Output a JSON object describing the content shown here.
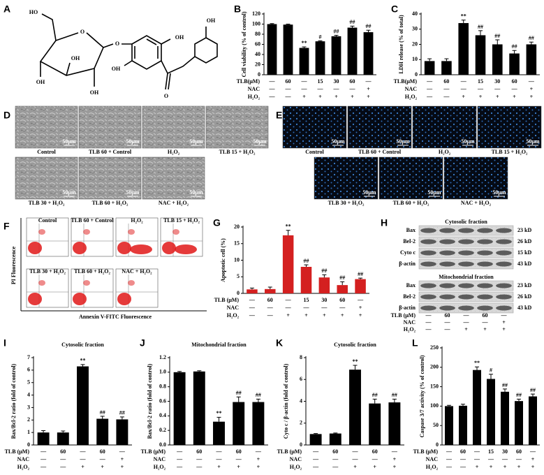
{
  "panel_letters": [
    "A",
    "B",
    "C",
    "D",
    "E",
    "F",
    "G",
    "H",
    "I",
    "J",
    "K",
    "L"
  ],
  "structure": {
    "labels": [
      "HO",
      "O",
      "O",
      "OH",
      "OH",
      "OH",
      "OH",
      "OH",
      "O",
      "OH"
    ]
  },
  "chart_data": [
    {
      "type": "bar",
      "ylabel": "Cell viability (% of control)",
      "color": "#000000",
      "values": [
        100,
        99,
        53,
        66,
        76,
        93,
        84
      ],
      "errors": [
        1,
        1,
        2,
        1,
        2,
        3,
        4
      ],
      "annotations": [
        null,
        null,
        "**",
        "#",
        "##",
        "##",
        "##"
      ],
      "ylim": [
        0,
        120
      ],
      "yticks": [
        0,
        20,
        40,
        60,
        80,
        100,
        120
      ],
      "treatments": [
        {
          "name": "TLB(μM)",
          "values": [
            "—",
            "60",
            "—",
            "15",
            "30",
            "60",
            "—"
          ]
        },
        {
          "name": "NAC",
          "values": [
            "—",
            "—",
            "—",
            "—",
            "—",
            "—",
            "+"
          ]
        },
        {
          "name": "H₂O₂",
          "values": [
            "—",
            "—",
            "+",
            "+",
            "+",
            "+",
            "+"
          ]
        }
      ]
    },
    {
      "type": "bar",
      "ylabel": "LDH release (% of total)",
      "color": "#000000",
      "values": [
        9,
        9,
        34,
        26,
        20,
        14,
        20
      ],
      "errors": [
        1.5,
        1.5,
        2,
        3,
        3,
        2,
        1.5
      ],
      "annotations": [
        null,
        null,
        "**",
        "##",
        "##",
        "##",
        "##"
      ],
      "ylim": [
        0,
        40
      ],
      "yticks": [
        0,
        10,
        20,
        30,
        40
      ],
      "treatments": [
        {
          "name": "TLB(μM)",
          "values": [
            "—",
            "60",
            "—",
            "15",
            "30",
            "60",
            "—"
          ]
        },
        {
          "name": "NAC",
          "values": [
            "—",
            "—",
            "—",
            "—",
            "—",
            "—",
            "+"
          ]
        },
        {
          "name": "H₂O₂",
          "values": [
            "—",
            "—",
            "+",
            "+",
            "+",
            "+",
            "+"
          ]
        }
      ]
    },
    {
      "type": "bar",
      "ylabel": "Apoptotic cell (%)",
      "color": "#d42020",
      "values": [
        1.2,
        1.3,
        17.5,
        8,
        4.8,
        2.5,
        4.3
      ],
      "errors": [
        0.4,
        0.6,
        1.5,
        0.6,
        0.8,
        1,
        0.3
      ],
      "annotations": [
        null,
        null,
        "**",
        "##",
        "##",
        "##",
        "##"
      ],
      "ylim": [
        0,
        20
      ],
      "yticks": [
        0,
        5,
        10,
        15,
        20
      ],
      "treatments": [
        {
          "name": "TLB (μM)",
          "values": [
            "—",
            "60",
            "—",
            "15",
            "30",
            "60",
            "—"
          ]
        },
        {
          "name": "NAC",
          "values": [
            "—",
            "—",
            "—",
            "—",
            "—",
            "—",
            "+"
          ]
        },
        {
          "name": "H₂O₂",
          "values": [
            "—",
            "—",
            "+",
            "+",
            "+",
            "+",
            "+"
          ]
        }
      ]
    },
    {
      "type": "bar",
      "title": "Cytosolic fraction",
      "ylabel": "Bax/Bcl-2 ratio (fold of control)",
      "color": "#000000",
      "values": [
        1,
        1,
        6.3,
        2.1,
        2.05
      ],
      "errors": [
        0.15,
        0.12,
        0.15,
        0.2,
        0.2
      ],
      "annotations": [
        null,
        null,
        "**",
        "##",
        "##"
      ],
      "ylim": [
        0,
        7
      ],
      "yticks": [
        0,
        1,
        2,
        3,
        4,
        5,
        6,
        7
      ],
      "treatments": [
        {
          "name": "TLB (μM)",
          "values": [
            "—",
            "60",
            "—",
            "60",
            "—"
          ]
        },
        {
          "name": "NAC",
          "values": [
            "—",
            "—",
            "—",
            "—",
            "+"
          ]
        },
        {
          "name": "H₂O₂",
          "values": [
            "—",
            "—",
            "+",
            "+",
            "+"
          ]
        }
      ]
    },
    {
      "type": "bar",
      "title": "Mitochondrial fraction",
      "ylabel": "Bax/Bcl-2 ratio (fold of control)",
      "color": "#000000",
      "values": [
        1,
        1.01,
        0.32,
        0.59,
        0.59
      ],
      "errors": [
        0.01,
        0.01,
        0.06,
        0.07,
        0.04
      ],
      "annotations": [
        null,
        null,
        "**",
        "##",
        "##"
      ],
      "ylim": [
        0,
        1.2
      ],
      "yticks": [
        {
          "value": 0,
          "label": "0.0"
        },
        0.2,
        0.4,
        0.6,
        0.8,
        {
          "value": 1,
          "label": "1.0"
        },
        1.2
      ],
      "treatments": [
        {
          "name": "TLB (μM)",
          "values": [
            "—",
            "60",
            "—",
            "60",
            "—"
          ]
        },
        {
          "name": "NAC",
          "values": [
            "—",
            "—",
            "—",
            "—",
            "+"
          ]
        },
        {
          "name": "H₂O₂",
          "values": [
            "—",
            "—",
            "+",
            "+",
            "+"
          ]
        }
      ]
    },
    {
      "type": "bar",
      "title": "Cytosolic fraction",
      "ylabel": "Cyto c / β-actin (fold of control)",
      "color": "#000000",
      "values": [
        1,
        1.05,
        6.9,
        3.8,
        3.9
      ],
      "errors": [
        0.05,
        0.05,
        0.4,
        0.4,
        0.3
      ],
      "annotations": [
        null,
        null,
        "**",
        "##",
        "##"
      ],
      "ylim": [
        0,
        8
      ],
      "yticks": [
        0,
        2,
        4,
        6,
        8
      ],
      "treatments": [
        {
          "name": "TLB (μM)",
          "values": [
            "—",
            "60",
            "—",
            "60",
            "—"
          ]
        },
        {
          "name": "NAC",
          "values": [
            "—",
            "—",
            "—",
            "—",
            "+"
          ]
        },
        {
          "name": "H₂O₂",
          "values": [
            "—",
            "—",
            "+",
            "+",
            "+"
          ]
        }
      ]
    },
    {
      "type": "bar",
      "ylabel": "Caspase 3/7 activity (% of control)",
      "color": "#000000",
      "values": [
        100,
        101,
        193,
        170,
        137,
        113,
        125
      ],
      "errors": [
        2,
        4,
        8,
        12,
        7,
        5,
        6
      ],
      "annotations": [
        null,
        null,
        "**",
        "#",
        "##",
        "##",
        "##"
      ],
      "ylim": [
        0,
        250
      ],
      "yticks": [
        0,
        50,
        100,
        150,
        200,
        250
      ],
      "treatments": [
        {
          "name": "TLB (μM)",
          "values": [
            "—",
            "60",
            "—",
            "15",
            "30",
            "60",
            "—"
          ]
        },
        {
          "name": "NAC",
          "values": [
            "—",
            "—",
            "—",
            "—",
            "—",
            "—",
            "+"
          ]
        },
        {
          "name": "H₂O₂",
          "values": [
            "—",
            "—",
            "+",
            "+",
            "+",
            "+",
            "+"
          ]
        }
      ]
    }
  ],
  "micrographs": {
    "bright_field": {
      "labels": [
        "Control",
        "TLB 60 + Control",
        "H₂O₂",
        "TLB 15 + H₂O₂",
        "TLB 30 + H₂O₂",
        "TLB 60 + H₂O₂",
        "NAC + H₂O₂"
      ],
      "scale_bar": "50μm"
    },
    "fluorescence": {
      "labels": [
        "Control",
        "TLB 60 + Control",
        "H₂O₂",
        "TLB 15 + H₂O₂",
        "TLB 30 + H₂O₂",
        "TLB 60 + H₂O₂",
        "NAC + H₂O₂"
      ],
      "scale_bar": "50μm"
    }
  },
  "flow_cytometry": {
    "y_label": "PI Fluorescence",
    "x_label": "Annexin V-FITC Fluorescence",
    "labels": [
      "Control",
      "TLB 60 + Control",
      "H₂O₂",
      "TLB 15 + H₂O₂",
      "TLB 30 + H₂O₂",
      "TLB 60 + H₂O₂",
      "NAC + H₂O₂"
    ]
  },
  "western_blot": {
    "sections": [
      {
        "title": "Cytosolic fraction",
        "rows": [
          {
            "protein": "Bax",
            "size": "23 kD"
          },
          {
            "protein": "Bel-2",
            "size": "26 kD"
          },
          {
            "protein": "Cyto c",
            "size": "15 kD"
          },
          {
            "protein": "β-actin",
            "size": "43 kD"
          }
        ]
      },
      {
        "title": "Mitochondrial fraction",
        "rows": [
          {
            "protein": "Bax",
            "size": "23 kD"
          },
          {
            "protein": "Bel-2",
            "size": "26 kD"
          },
          {
            "protein": "β-actin",
            "size": "43 kD"
          }
        ]
      }
    ],
    "treatments": [
      {
        "name": "TLB (μM)",
        "values": [
          "—",
          "60",
          "—",
          "60",
          "—"
        ]
      },
      {
        "name": "NAC",
        "values": [
          "—",
          "—",
          "—",
          "—",
          "+"
        ]
      },
      {
        "name": "H₂O₂",
        "values": [
          "—",
          "—",
          "+",
          "+",
          "+"
        ]
      }
    ]
  }
}
